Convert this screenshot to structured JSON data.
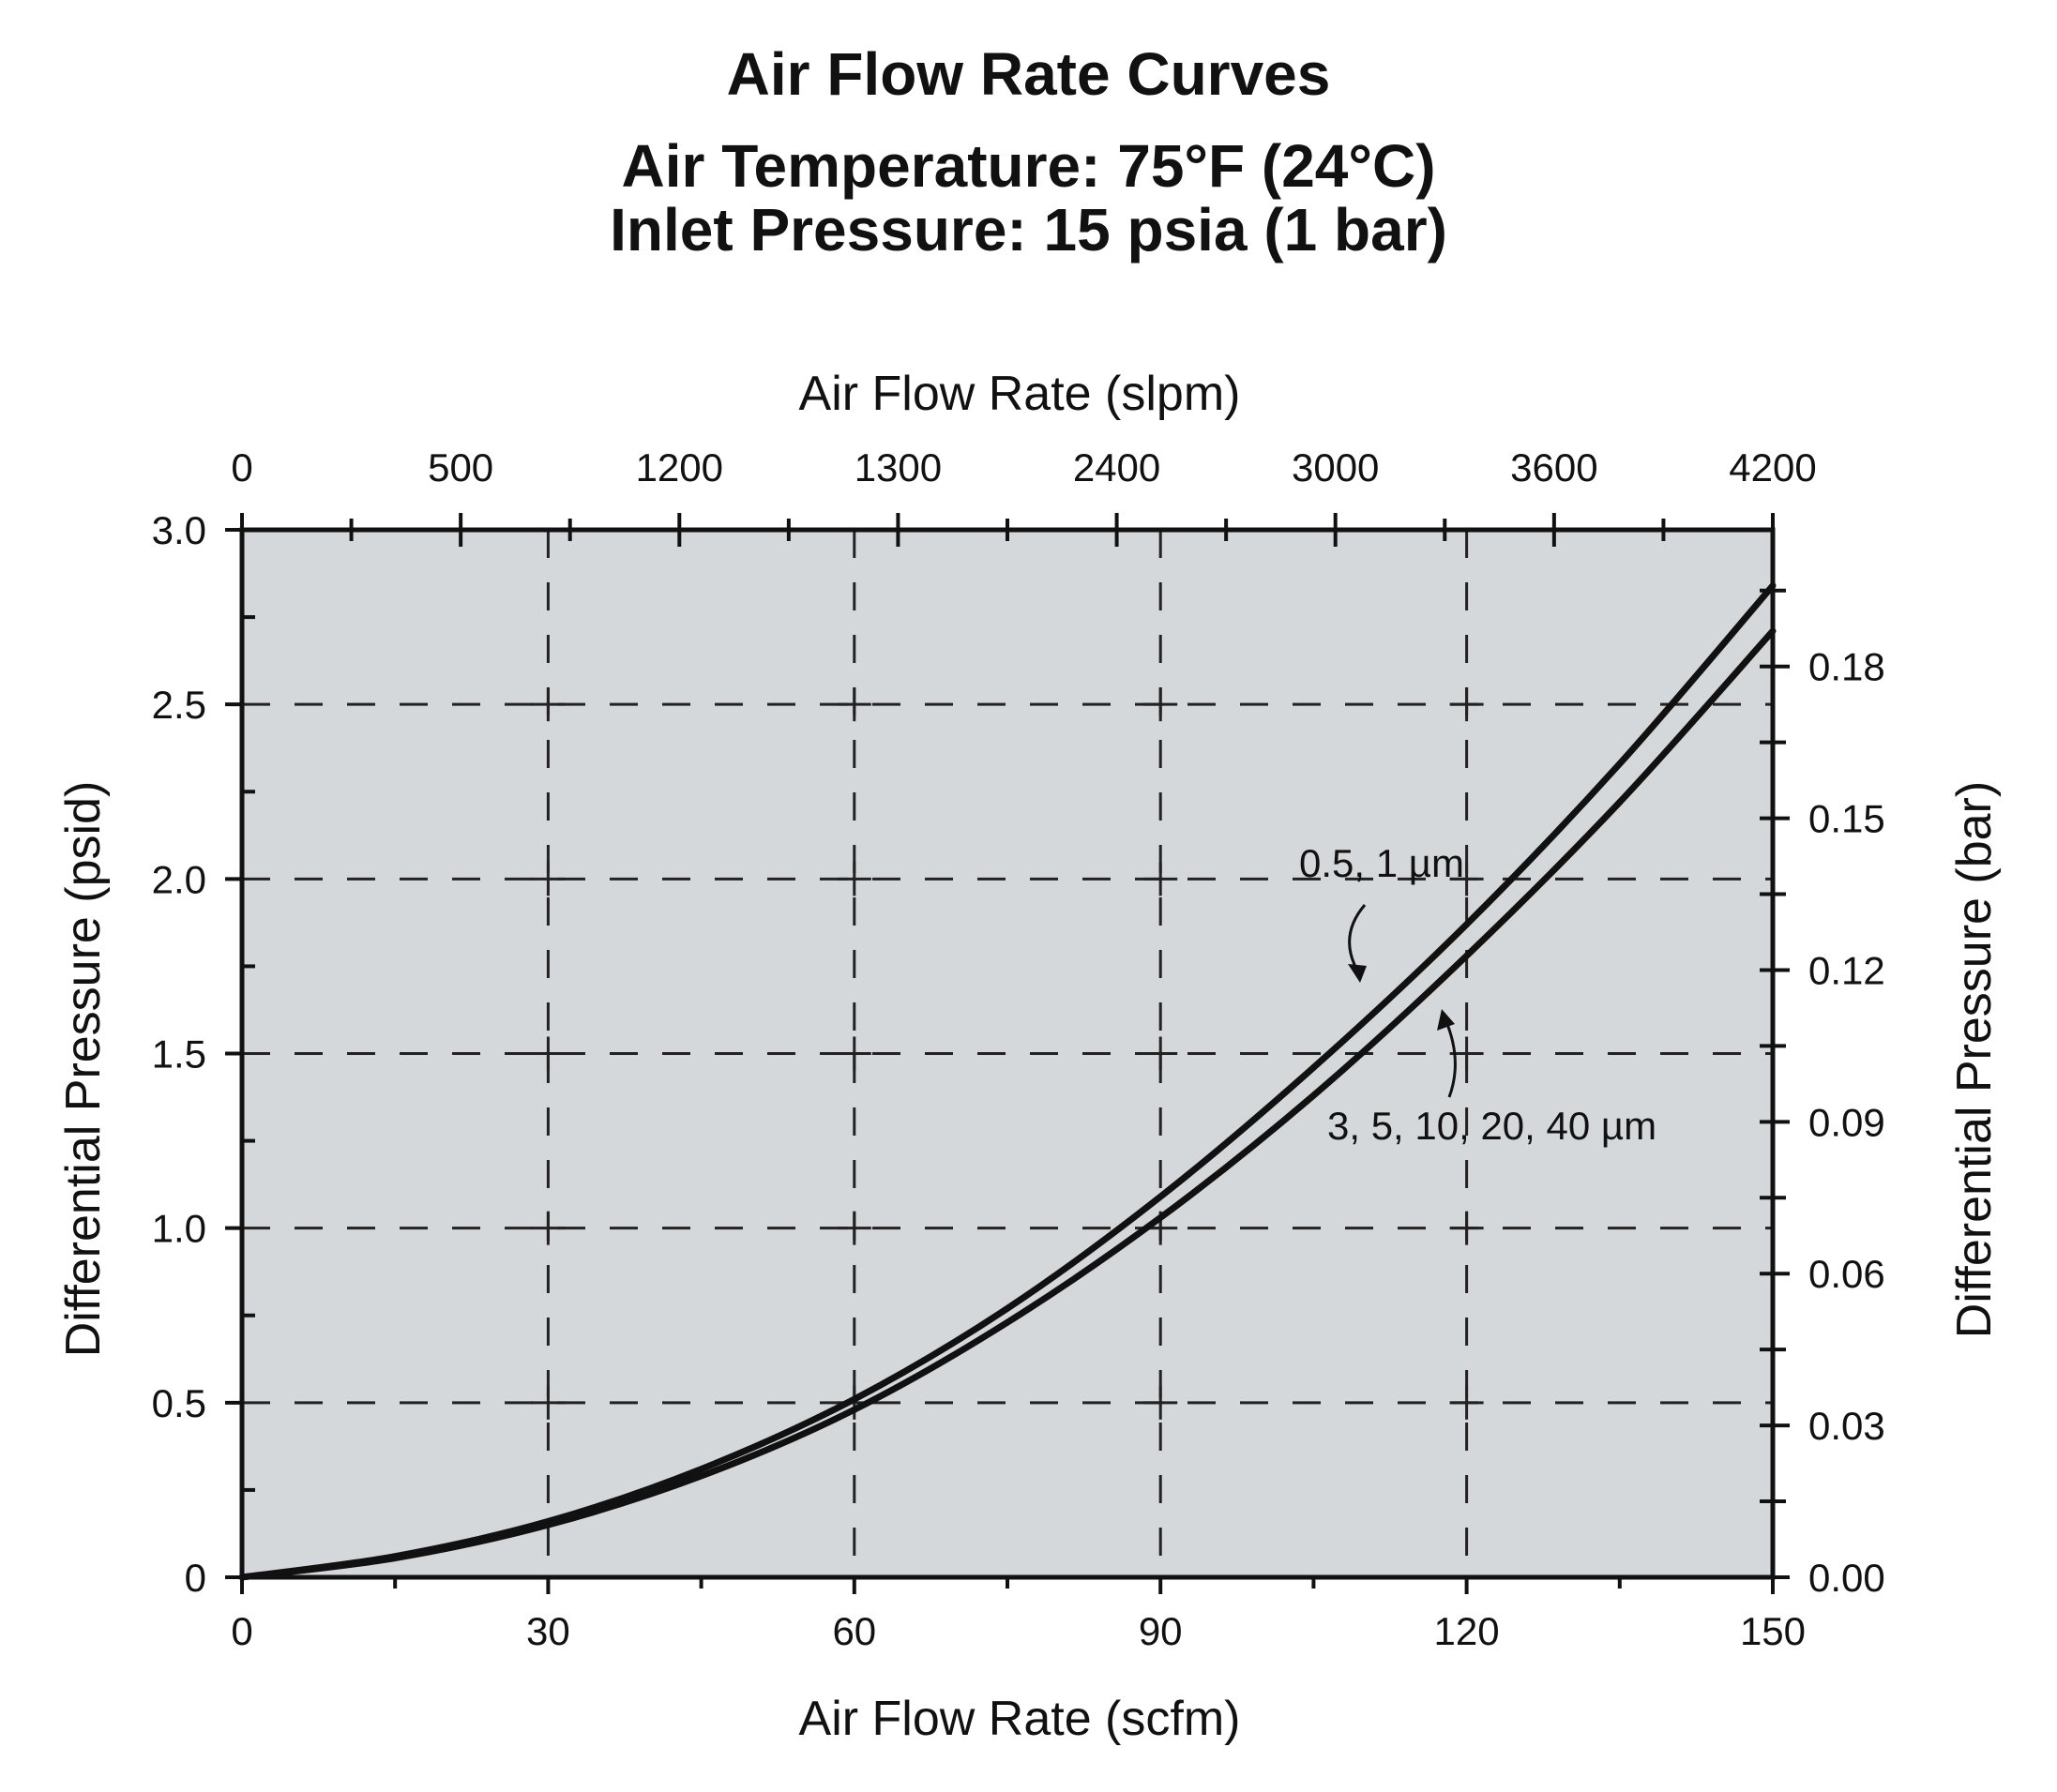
{
  "chart_data": {
    "type": "line",
    "title": "Air Flow Rate Curves",
    "subtitle": [
      "Air Temperature: 75°F (24°C)",
      "Inlet Pressure: 15 psia (1 bar)"
    ],
    "xlabel": "Air Flow Rate (scfm)",
    "ylabel": "Differential Pressure (psid)",
    "x2label": "Air Flow Rate (slpm)",
    "y2label": "Differential Pressure (bar)",
    "xlim": [
      0,
      150
    ],
    "ylim": [
      0,
      3.0
    ],
    "y2lim": [
      0,
      0.207
    ],
    "x_ticks": [
      0,
      30,
      60,
      90,
      120,
      150
    ],
    "y_ticks": [
      0,
      0.5,
      1.0,
      1.5,
      2.0,
      2.5,
      3.0
    ],
    "x_tick_labels": [
      "0",
      "30",
      "60",
      "90",
      "120",
      "150"
    ],
    "y_tick_labels": [
      "0",
      "0.5",
      "1.0",
      "1.5",
      "2.0",
      "2.5",
      "3.0"
    ],
    "x2_tick_labels": [
      "0",
      "500",
      "1200",
      "1300",
      "2400",
      "3000",
      "3600",
      "4200"
    ],
    "y2_ticks": [
      0,
      0.03,
      0.06,
      0.09,
      0.12,
      0.15,
      0.18
    ],
    "y2_tick_labels": [
      "0.00",
      "0.03",
      "0.06",
      "0.09",
      "0.12",
      "0.15",
      "0.18"
    ],
    "grid": true,
    "series": [
      {
        "name": "0.5, 1 µm",
        "x": [
          0,
          15,
          30,
          45,
          60,
          75,
          90,
          105,
          120,
          135,
          150
        ],
        "y": [
          0,
          0.06,
          0.16,
          0.31,
          0.51,
          0.77,
          1.09,
          1.46,
          1.87,
          2.33,
          2.84
        ]
      },
      {
        "name": "3, 5, 10, 20, 40 µm",
        "x": [
          0,
          15,
          30,
          45,
          60,
          75,
          90,
          105,
          120,
          135,
          150
        ],
        "y": [
          0,
          0.055,
          0.15,
          0.29,
          0.48,
          0.73,
          1.03,
          1.38,
          1.78,
          2.22,
          2.71
        ]
      }
    ]
  }
}
